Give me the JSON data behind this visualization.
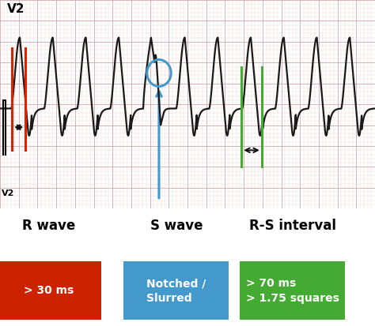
{
  "title": "V2",
  "ecg_bg_color": "#f7eeee",
  "grid_minor_color": "#e8cccc",
  "grid_major_color": "#d4a8a8",
  "ecg_color": "#1a1a1a",
  "ecg_linewidth": 1.6,
  "red_line_color": "#dd2200",
  "blue_circle_color": "#4499cc",
  "green_line_color": "#44aa33",
  "arrow_black": "#111111",
  "arrow_blue": "#4499cc",
  "label_r_wave": "R wave",
  "label_s_wave": "S wave",
  "label_rs_interval": "R-S interval",
  "box_r_color": "#cc2200",
  "box_r_text": "> 30 ms",
  "box_s_color": "#4499cc",
  "box_s_text": "Notched /\nSlurred",
  "box_rs_color": "#44aa33",
  "box_rs_text": "> 70 ms\n> 1.75 squares",
  "white": "#ffffff",
  "figsize": [
    4.74,
    4.13
  ],
  "dpi": 100
}
